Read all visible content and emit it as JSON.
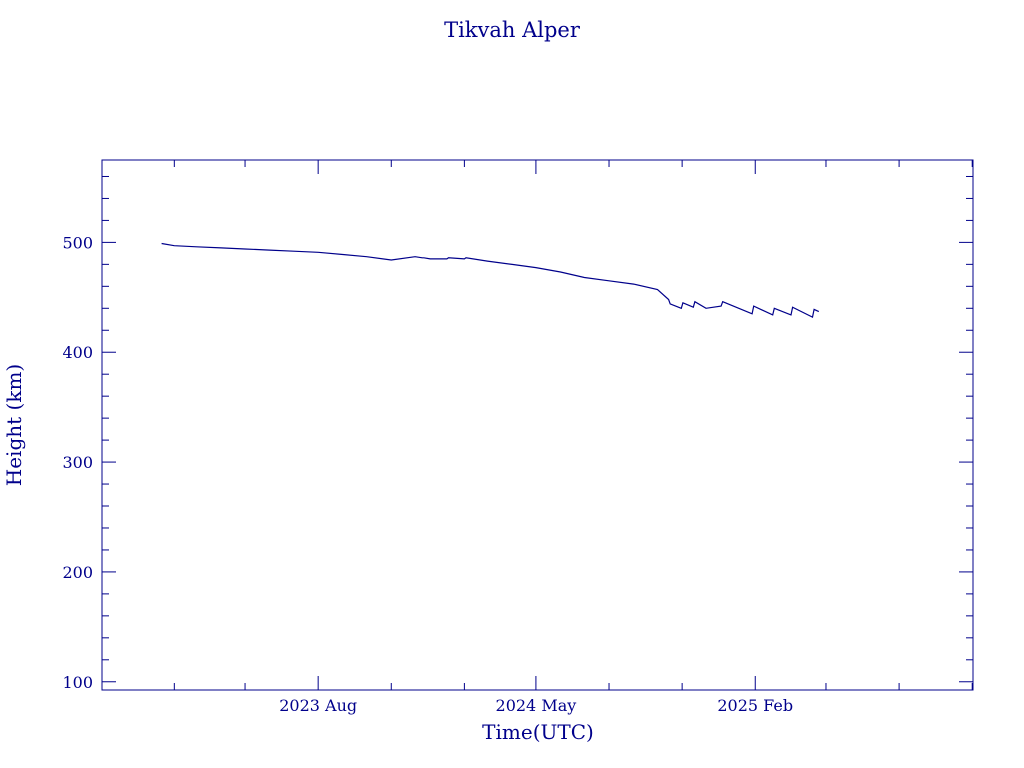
{
  "chart_data": {
    "type": "line",
    "title": "Tikvah Alper",
    "xlabel": "Time(UTC)",
    "ylabel": "Height (km)",
    "x_ticks": [
      {
        "date": "2023-08-01",
        "label": "2023 Aug"
      },
      {
        "date": "2024-05-01",
        "label": "2024 May"
      },
      {
        "date": "2025-02-01",
        "label": "2025 Feb"
      }
    ],
    "xlim": [
      "2022-11-02",
      "2025-11-02"
    ],
    "y_ticks": [
      100,
      200,
      300,
      400,
      500
    ],
    "ylim": [
      92.5,
      575
    ],
    "grid": false,
    "series": [
      {
        "color": "#00008b",
        "x": [
          "2023-01-16",
          "2023-02-01",
          "2023-03-01",
          "2023-04-01",
          "2023-05-01",
          "2023-06-01",
          "2023-07-01",
          "2023-08-01",
          "2023-09-01",
          "2023-10-01",
          "2023-11-01",
          "2023-12-01",
          "2023-12-10",
          "2023-12-12",
          "2023-12-20",
          "2024-01-10",
          "2024-01-12",
          "2024-02-01",
          "2024-02-03",
          "2024-03-01",
          "2024-04-01",
          "2024-05-01",
          "2024-06-01",
          "2024-07-01",
          "2024-08-01",
          "2024-09-01",
          "2024-10-01",
          "2024-10-15",
          "2024-10-17",
          "2024-10-31",
          "2024-11-02",
          "2024-11-15",
          "2024-11-17",
          "2024-12-01",
          "2024-12-20",
          "2024-12-22",
          "2025-01-28",
          "2025-01-30",
          "2025-02-23",
          "2025-02-25",
          "2025-03-18",
          "2025-03-20",
          "2025-04-14",
          "2025-04-16",
          "2025-04-22"
        ],
        "values": [
          499,
          497,
          496,
          495,
          494,
          493,
          492,
          491,
          489,
          487,
          484,
          487,
          486,
          486,
          485,
          485,
          486,
          485,
          486,
          483,
          480,
          477,
          473,
          468,
          465,
          462,
          457,
          448,
          444,
          440,
          445,
          441,
          446,
          440,
          442,
          446,
          435,
          442,
          434,
          440,
          434,
          441,
          432,
          439,
          437
        ]
      }
    ]
  }
}
